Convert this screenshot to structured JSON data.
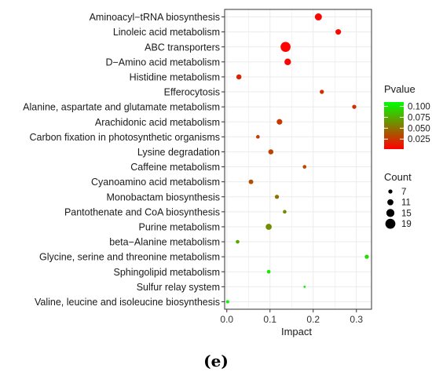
{
  "chart_data": {
    "type": "scatter",
    "xlabel": "Impact",
    "xlim": [
      -0.005,
      0.335
    ],
    "xticks": [
      "0.0",
      "0.1",
      "0.2",
      "0.3"
    ],
    "xtick_values": [
      0.0,
      0.1,
      0.2,
      0.3
    ],
    "grid": true,
    "legend_placement": "right",
    "color_legend": {
      "title": "Pvalue",
      "ticks": [
        "0.100",
        "0.075",
        "0.050",
        "0.025"
      ],
      "tick_values": [
        0.1,
        0.075,
        0.05,
        0.025
      ],
      "low_color": "#ff0000",
      "high_color": "#00ff00",
      "min": 0.002,
      "max": 0.11
    },
    "size_legend": {
      "title": "Count",
      "labels": [
        "7",
        "11",
        "15",
        "19"
      ],
      "values": [
        7,
        11,
        15,
        19
      ]
    },
    "points": [
      {
        "pathway": "Aminoacyl−tRNA biosynthesis",
        "impact": 0.212,
        "pvalue": 0.004,
        "count": 13
      },
      {
        "pathway": "Linoleic acid metabolism",
        "impact": 0.258,
        "pvalue": 0.006,
        "count": 10
      },
      {
        "pathway": "ABC transporters",
        "impact": 0.136,
        "pvalue": 0.003,
        "count": 19
      },
      {
        "pathway": "D−Amino acid metabolism",
        "impact": 0.141,
        "pvalue": 0.004,
        "count": 12
      },
      {
        "pathway": "Histidine metabolism",
        "impact": 0.028,
        "pvalue": 0.016,
        "count": 9
      },
      {
        "pathway": "Efferocytosis",
        "impact": 0.22,
        "pvalue": 0.02,
        "count": 7
      },
      {
        "pathway": "Alanine, aspartate and glutamate metabolism",
        "impact": 0.295,
        "pvalue": 0.022,
        "count": 7
      },
      {
        "pathway": "Arachidonic acid metabolism",
        "impact": 0.122,
        "pvalue": 0.025,
        "count": 10
      },
      {
        "pathway": "Carbon fixation in photosynthetic organisms",
        "impact": 0.072,
        "pvalue": 0.028,
        "count": 6
      },
      {
        "pathway": "Lysine degradation",
        "impact": 0.102,
        "pvalue": 0.03,
        "count": 9
      },
      {
        "pathway": "Caffeine metabolism",
        "impact": 0.18,
        "pvalue": 0.032,
        "count": 6
      },
      {
        "pathway": "Cyanoamino acid metabolism",
        "impact": 0.056,
        "pvalue": 0.035,
        "count": 8
      },
      {
        "pathway": "Monobactam biosynthesis",
        "impact": 0.116,
        "pvalue": 0.05,
        "count": 7
      },
      {
        "pathway": "Pantothenate and CoA biosynthesis",
        "impact": 0.134,
        "pvalue": 0.06,
        "count": 6
      },
      {
        "pathway": "Purine metabolism",
        "impact": 0.097,
        "pvalue": 0.062,
        "count": 11
      },
      {
        "pathway": "beta−Alanine metabolism",
        "impact": 0.025,
        "pvalue": 0.072,
        "count": 6
      },
      {
        "pathway": "Glycine, serine and threonine metabolism",
        "impact": 0.324,
        "pvalue": 0.095,
        "count": 7
      },
      {
        "pathway": "Sphingolipid metabolism",
        "impact": 0.097,
        "pvalue": 0.1,
        "count": 6
      },
      {
        "pathway": "Sulfur relay system",
        "impact": 0.18,
        "pvalue": 0.102,
        "count": 3
      },
      {
        "pathway": "Valine, leucine and isoleucine biosynthesis",
        "impact": 0.002,
        "pvalue": 0.105,
        "count": 5
      }
    ],
    "panel_label": "(e)"
  }
}
